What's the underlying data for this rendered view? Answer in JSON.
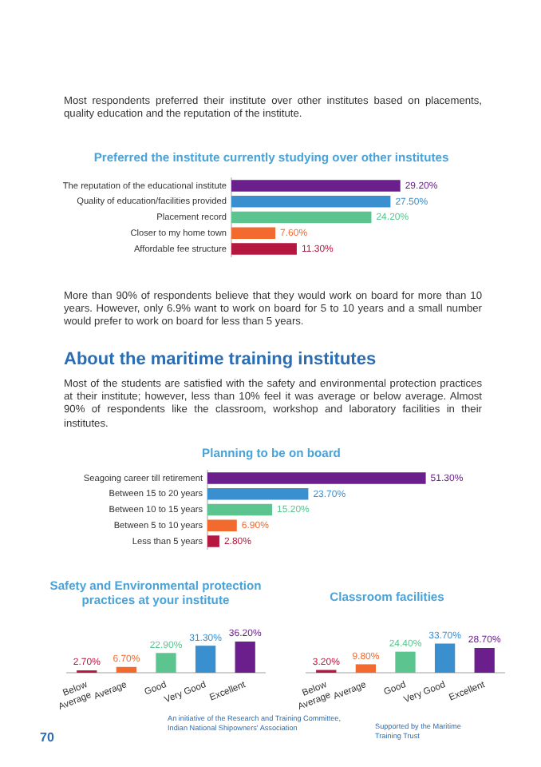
{
  "chart_data": [
    {
      "type": "bar",
      "orientation": "horizontal",
      "title": "Preferred the institute currently studying over other institutes",
      "annotations": [
        "Most respondents preferred their institute over other institutes based on placements, quality education and the reputation of the institute."
      ],
      "categories": [
        "The reputation of the educational institute",
        "Quality of education/facilities provided",
        "Placement record",
        "Closer to my home town",
        "Affordable fee structure"
      ],
      "values": [
        29.2,
        27.5,
        24.2,
        7.6,
        11.3
      ],
      "value_labels": [
        "29.20%",
        "27.50%",
        "24.20%",
        "7.60%",
        "11.30%"
      ],
      "colors": [
        "#6b1f8c",
        "#3a8fcf",
        "#5cc48f",
        "#f26a2e",
        "#b5173e"
      ],
      "tick_labels": "y"
    },
    {
      "type": "bar",
      "orientation": "horizontal",
      "title": "Planning to be on board",
      "annotations": [
        "More than 90% of respondents believe that they would work on board for more than 10 years. However, only 6.9% want to work on board for 5 to 10 years and a small number would prefer to work on board for less than 5 years.",
        "About the maritime training institutes",
        "Most of the students are satisfied with the safety and environmental protection practices at their institute; however, less than 10% feel it was average or below average. Almost 90% of respondents like the classroom, workshop and laboratory facilities in their institutes."
      ],
      "categories": [
        "Seagoing career till retirement",
        "Between 15 to 20 years",
        "Between 10 to 15 years",
        "Between 5 to 10 years",
        "Less than 5 years"
      ],
      "values": [
        51.3,
        23.7,
        15.2,
        6.9,
        2.8
      ],
      "value_labels": [
        "51.30%",
        "23.70%",
        "15.20%",
        "6.90%",
        "2.80%"
      ],
      "colors": [
        "#6b1f8c",
        "#3a8fcf",
        "#5cc48f",
        "#f26a2e",
        "#b5173e"
      ],
      "tick_labels": "y"
    },
    {
      "type": "bar",
      "title": "Safety and Environmental protection practices at your institute",
      "categories": [
        "Below Average",
        "Average",
        "Good",
        "Very Good",
        "Excellent"
      ],
      "values": [
        2.7,
        6.7,
        22.9,
        31.3,
        36.2
      ],
      "value_labels": [
        "2.70%",
        "6.70%",
        "22.90%",
        "31.30%",
        "36.20%"
      ],
      "colors": [
        "#b5173e",
        "#f26a2e",
        "#5cc48f",
        "#3a8fcf",
        "#6b1f8c"
      ],
      "tick_labels": "x"
    },
    {
      "type": "bar",
      "title": "Classroom facilities",
      "annotations": [
        "70",
        "An initiative of the Research and Training Committee, Indian National Shipowners' Association",
        "Supported by the Maritime Training Trust"
      ],
      "categories": [
        "Below Average",
        "Average",
        "Good",
        "Very Good",
        "Excellent"
      ],
      "values": [
        3.2,
        9.8,
        24.4,
        33.7,
        28.7
      ],
      "value_labels": [
        "3.20%",
        "9.80%",
        "24.40%",
        "33.70%",
        "28.70%"
      ],
      "colors": [
        "#b5173e",
        "#f26a2e",
        "#5cc48f",
        "#3a8fcf",
        "#6b1f8c"
      ],
      "tick_labels": "x"
    }
  ]
}
